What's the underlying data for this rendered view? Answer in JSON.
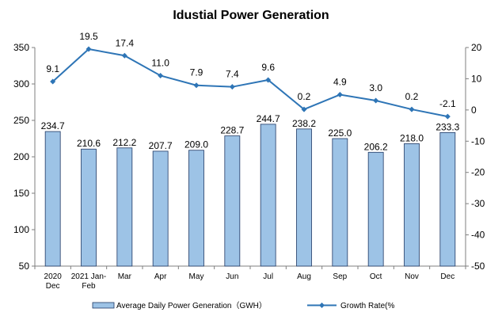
{
  "chart_data": {
    "type": "bar",
    "title": "Idustial Power Generation",
    "categories": [
      [
        "2020",
        "Dec"
      ],
      [
        "2021 Jan-",
        "Feb"
      ],
      [
        "Mar"
      ],
      [
        "Apr"
      ],
      [
        "May"
      ],
      [
        "Jun"
      ],
      [
        "Jul"
      ],
      [
        "Aug"
      ],
      [
        "Sep"
      ],
      [
        "Oct"
      ],
      [
        "Nov"
      ],
      [
        "Dec"
      ]
    ],
    "series": [
      {
        "name": "Average Daily Power Generation（GWH）",
        "type": "bar",
        "axis": "left",
        "values": [
          234.7,
          210.6,
          212.2,
          207.7,
          209.0,
          228.7,
          244.7,
          238.2,
          225.0,
          206.2,
          218.0,
          233.3
        ],
        "labels": [
          "234.7",
          "210.6",
          "212.2",
          "207.7",
          "209.0",
          "228.7",
          "244.7",
          "238.2",
          "225.0",
          "206.2",
          "218.0",
          "233.3"
        ],
        "color": "#9dc3e6",
        "border": "#1f3864"
      },
      {
        "name": "Growth Rate(%",
        "type": "line",
        "axis": "right",
        "values": [
          9.1,
          19.5,
          17.4,
          11.0,
          7.9,
          7.4,
          9.6,
          0.2,
          4.9,
          3.0,
          0.2,
          -2.1
        ],
        "labels": [
          "9.1",
          "19.5",
          "17.4",
          "11.0",
          "7.9",
          "7.4",
          "9.6",
          "0.2",
          "4.9",
          "3.0",
          "0.2",
          "-2.1"
        ],
        "color": "#2e75b6"
      }
    ],
    "y_left": {
      "range": [
        50,
        350
      ],
      "ticks": [
        "350",
        "300",
        "250",
        "200",
        "150",
        "100",
        "50"
      ]
    },
    "y_right": {
      "range": [
        -50,
        20
      ],
      "ticks": [
        "20",
        "10",
        "0",
        "-10",
        "-20",
        "-30",
        "-40",
        "-50"
      ]
    },
    "grid": false,
    "legend": "bottom"
  }
}
